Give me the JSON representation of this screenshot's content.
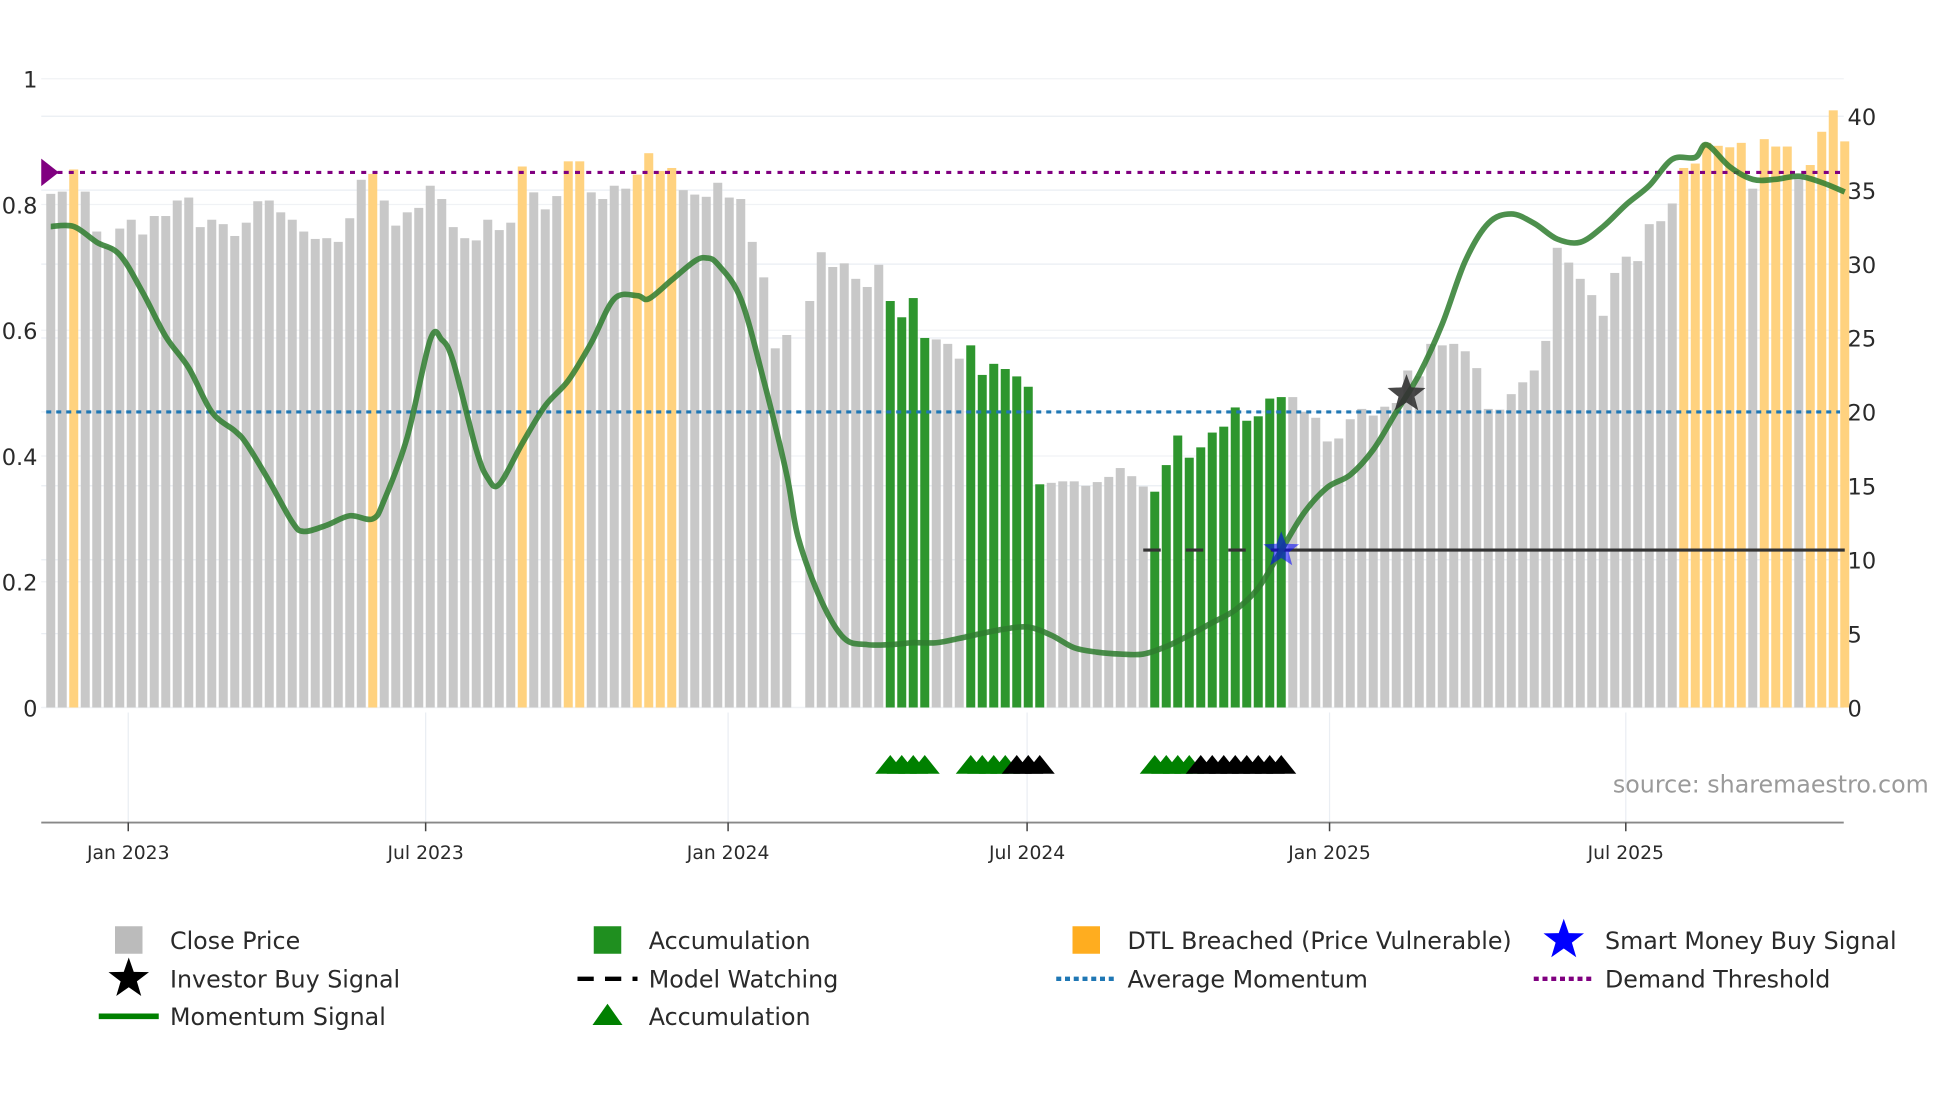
{
  "colors": {
    "close": "#c8c8c8",
    "accumulation": "#2e962e",
    "dtl": "#ffd27f",
    "momentum": "#2e7d2e",
    "avg": "#1f77b4",
    "demand": "#800080",
    "watch": "#333333",
    "smart": "#0000ff",
    "investor": "#000000",
    "tri_green": "#008000",
    "tri_black": "#000000"
  },
  "chart_data": {
    "type": "bar",
    "title": "",
    "source": "source: sharemaestro.com",
    "x_unit": "week index",
    "x_ticks": [
      {
        "label": "Jan 2023",
        "at": 6.74
      },
      {
        "label": "Jul 2023",
        "at": 32.6
      },
      {
        "label": "Jan 2024",
        "at": 58.9
      },
      {
        "label": "Jul 2024",
        "at": 84.9
      },
      {
        "label": "Jan 2025",
        "at": 111.2
      },
      {
        "label": "Jul 2025",
        "at": 136.96
      }
    ],
    "left_axis": {
      "ylim": [
        0,
        1
      ],
      "ticks": [
        "0",
        "0.2",
        "0.4",
        "0.6",
        "0.8",
        "1"
      ],
      "tick_values": [
        0,
        0.2,
        0.4,
        0.6,
        0.8,
        1
      ]
    },
    "right_axis": {
      "ylim": [
        0,
        40
      ],
      "ticks": [
        "0",
        "5",
        "10",
        "15",
        "20",
        "25",
        "30",
        "35",
        "40"
      ],
      "tick_values": [
        0,
        5,
        10,
        15,
        20,
        25,
        30,
        35,
        40
      ]
    },
    "close_price": [
      34.75,
      34.9,
      36.4,
      34.9,
      32.2,
      31.2,
      32.4,
      33.0,
      32.0,
      33.25,
      33.25,
      34.3,
      34.5,
      32.5,
      33.0,
      32.7,
      31.9,
      32.8,
      34.25,
      34.3,
      33.5,
      33.0,
      32.2,
      31.7,
      31.75,
      31.5,
      33.1,
      35.7,
      36.1,
      34.3,
      32.6,
      33.5,
      33.8,
      35.3,
      34.4,
      32.5,
      31.75,
      31.6,
      33.0,
      32.3,
      32.8,
      36.6,
      34.85,
      33.7,
      34.6,
      36.95,
      36.95,
      34.85,
      34.4,
      35.3,
      35.1,
      36.05,
      37.5,
      36.3,
      36.5,
      35.0,
      34.7,
      34.55,
      35.5,
      34.5,
      34.4,
      31.5,
      29.1,
      24.3,
      25.2,
      null,
      27.5,
      30.8,
      29.8,
      30.05,
      29.0,
      28.45,
      29.95,
      27.5,
      26.4,
      27.7,
      25.0,
      24.9,
      24.6,
      23.6,
      24.5,
      22.5,
      23.25,
      22.9,
      22.4,
      21.7,
      15.1,
      15.2,
      15.3,
      15.3,
      15.0,
      15.25,
      15.6,
      16.2,
      15.65,
      14.95,
      14.6,
      16.4,
      18.4,
      16.9,
      17.6,
      18.6,
      19.0,
      20.3,
      19.4,
      19.7,
      20.9,
      21.0,
      21.0,
      20.0,
      19.6,
      18.0,
      18.2,
      19.5,
      20.2,
      19.75,
      20.35,
      20.6,
      22.8,
      22.4,
      24.6,
      24.5,
      24.6,
      24.1,
      22.96,
      20.2,
      20.15,
      21.2,
      22.0,
      22.8,
      24.8,
      31.1,
      30.1,
      29.0,
      27.9,
      26.5,
      29.4,
      30.5,
      30.2,
      32.7,
      32.9,
      34.1,
      36.5,
      36.8,
      38.2,
      38.0,
      37.9,
      38.2,
      35.1,
      38.45,
      37.95,
      37.95,
      35.8,
      36.7,
      38.95,
      40.4,
      38.3
    ],
    "dtl_breached_weeks": [
      2,
      28,
      41,
      45,
      46,
      51,
      52,
      53,
      54,
      142,
      143,
      144,
      145,
      146,
      147,
      149,
      150,
      151,
      153,
      154,
      155,
      156
    ],
    "accumulation_weeks": [
      73,
      74,
      75,
      76,
      80,
      81,
      82,
      83,
      84,
      85,
      86,
      96,
      97,
      98,
      99,
      100,
      101,
      102,
      103,
      104,
      105,
      106,
      107
    ],
    "accumulation_markers": {
      "green": [
        73,
        74,
        75,
        76,
        80,
        81,
        82,
        83,
        96,
        97,
        98,
        99
      ],
      "black": [
        84,
        85,
        86,
        100,
        101,
        102,
        103,
        104,
        105,
        106,
        107
      ]
    },
    "momentum_signal": [
      [
        0,
        0.765
      ],
      [
        2,
        0.765
      ],
      [
        4,
        0.74
      ],
      [
        6,
        0.72
      ],
      [
        8,
        0.66
      ],
      [
        10,
        0.59
      ],
      [
        12,
        0.54
      ],
      [
        14,
        0.47
      ],
      [
        16,
        0.44
      ],
      [
        17,
        0.42
      ],
      [
        19,
        0.36
      ],
      [
        21,
        0.295
      ],
      [
        22,
        0.28
      ],
      [
        24,
        0.29
      ],
      [
        26,
        0.305
      ],
      [
        28,
        0.3
      ],
      [
        29,
        0.33
      ],
      [
        31,
        0.43
      ],
      [
        33,
        0.585
      ],
      [
        34,
        0.585
      ],
      [
        35,
        0.55
      ],
      [
        37,
        0.41
      ],
      [
        38,
        0.365
      ],
      [
        39,
        0.355
      ],
      [
        41,
        0.42
      ],
      [
        43,
        0.48
      ],
      [
        45,
        0.52
      ],
      [
        47,
        0.58
      ],
      [
        49,
        0.65
      ],
      [
        51,
        0.655
      ],
      [
        52,
        0.65
      ],
      [
        54,
        0.68
      ],
      [
        56,
        0.71
      ],
      [
        57,
        0.715
      ],
      [
        58,
        0.705
      ],
      [
        60,
        0.65
      ],
      [
        62,
        0.52
      ],
      [
        64,
        0.37
      ],
      [
        65,
        0.27
      ],
      [
        67,
        0.17
      ],
      [
        69,
        0.11
      ],
      [
        71,
        0.1
      ],
      [
        73,
        0.1
      ],
      [
        75,
        0.103
      ],
      [
        77,
        0.103
      ],
      [
        79,
        0.11
      ],
      [
        81,
        0.118
      ],
      [
        83,
        0.125
      ],
      [
        85,
        0.128
      ],
      [
        87,
        0.115
      ],
      [
        89,
        0.095
      ],
      [
        91,
        0.088
      ],
      [
        93,
        0.085
      ],
      [
        95,
        0.085
      ],
      [
        97,
        0.097
      ],
      [
        99,
        0.115
      ],
      [
        101,
        0.135
      ],
      [
        103,
        0.155
      ],
      [
        105,
        0.19
      ],
      [
        107,
        0.25
      ],
      [
        109,
        0.31
      ],
      [
        111,
        0.35
      ],
      [
        113,
        0.37
      ],
      [
        115,
        0.41
      ],
      [
        117,
        0.47
      ],
      [
        119,
        0.53
      ],
      [
        121,
        0.61
      ],
      [
        123,
        0.71
      ],
      [
        125,
        0.77
      ],
      [
        127,
        0.785
      ],
      [
        129,
        0.77
      ],
      [
        131,
        0.745
      ],
      [
        133,
        0.74
      ],
      [
        135,
        0.765
      ],
      [
        137,
        0.8
      ],
      [
        139,
        0.83
      ],
      [
        141,
        0.872
      ],
      [
        143,
        0.875
      ],
      [
        144,
        0.895
      ],
      [
        146,
        0.86
      ],
      [
        148,
        0.84
      ],
      [
        150,
        0.84
      ],
      [
        152,
        0.845
      ],
      [
        154,
        0.835
      ],
      [
        156,
        0.82
      ]
    ],
    "average_momentum": 20,
    "demand_threshold": 36.2,
    "model_watching": {
      "value": 10.65,
      "from_week": 95,
      "to_week": 156
    },
    "investor_buy_signal": {
      "week": 118,
      "value": 21.2
    },
    "smart_money_buy_signal": {
      "week": 107,
      "value": 10.65
    },
    "legend": {
      "placement": "bottom",
      "items": [
        {
          "label": "Close Price",
          "icon": "gray-square-icon"
        },
        {
          "label": "Accumulation",
          "icon": "green-square-icon"
        },
        {
          "label": "DTL Breached (Price Vulnerable)",
          "icon": "orange-square-icon"
        },
        {
          "label": "Smart Money Buy Signal",
          "icon": "blue-star-icon"
        },
        {
          "label": "Investor Buy Signal",
          "icon": "black-star-icon"
        },
        {
          "label": "Model Watching",
          "icon": "dashed-line-icon"
        },
        {
          "label": "Average Momentum",
          "icon": "blue-dotted-line-icon"
        },
        {
          "label": "Demand Threshold",
          "icon": "purple-dotted-line-icon"
        },
        {
          "label": "Momentum Signal",
          "icon": "green-line-icon"
        },
        {
          "label": "Accumulation",
          "icon": "green-triangle-icon"
        }
      ]
    }
  }
}
